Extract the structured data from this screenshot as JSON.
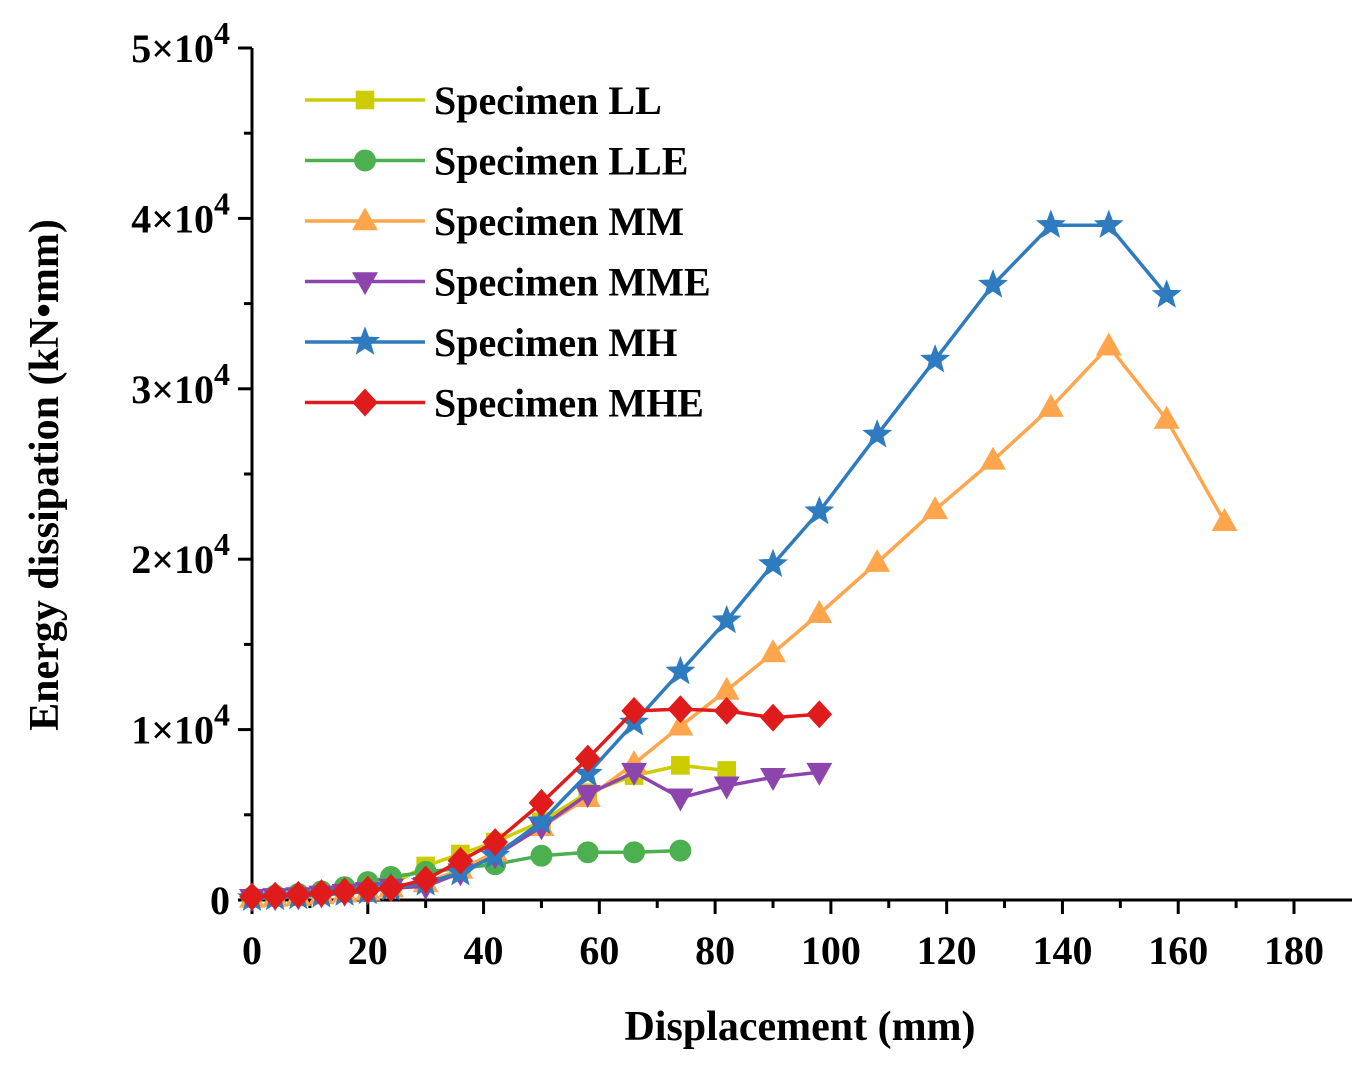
{
  "chart_data": {
    "type": "line",
    "title": "",
    "xlabel": "Displacement (mm)",
    "ylabel": "Energy dissipation (kN•mm)",
    "xlim": [
      0,
      190
    ],
    "ylim": [
      0,
      50000
    ],
    "x_ticks": [
      0,
      20,
      40,
      60,
      80,
      100,
      120,
      140,
      160,
      180
    ],
    "x_tick_labels": [
      "0",
      "20",
      "40",
      "60",
      "80",
      "100",
      "120",
      "140",
      "160",
      "180"
    ],
    "y_ticks": [
      0,
      10000,
      20000,
      30000,
      40000,
      50000
    ],
    "y_tick_labels": [
      {
        "mantissa": "0",
        "exp": ""
      },
      {
        "mantissa": "1×10",
        "exp": "4"
      },
      {
        "mantissa": "2×10",
        "exp": "4"
      },
      {
        "mantissa": "3×10",
        "exp": "4"
      },
      {
        "mantissa": "4×10",
        "exp": "4"
      },
      {
        "mantissa": "5×10",
        "exp": "4"
      }
    ],
    "grid": false,
    "legend_position": "top-left",
    "series": [
      {
        "name": "Specimen LL",
        "color": "#cccc00",
        "marker": "square",
        "x": [
          0,
          4,
          8,
          12,
          16,
          20,
          24,
          30,
          36,
          42,
          50,
          58,
          66,
          74,
          82
        ],
        "y": [
          100,
          150,
          200,
          300,
          450,
          650,
          900,
          2000,
          2700,
          3400,
          4600,
          6300,
          7300,
          7900,
          7600
        ]
      },
      {
        "name": "Specimen LLE",
        "color": "#4caf50",
        "marker": "circle",
        "x": [
          0,
          4,
          8,
          12,
          16,
          20,
          24,
          30,
          36,
          42,
          50,
          58,
          66,
          74
        ],
        "y": [
          150,
          250,
          350,
          500,
          750,
          1050,
          1350,
          1650,
          1850,
          2100,
          2600,
          2800,
          2800,
          2900
        ]
      },
      {
        "name": "Specimen MM",
        "color": "#ffa64d",
        "marker": "triangle-up",
        "x": [
          0,
          4,
          8,
          12,
          16,
          20,
          24,
          30,
          36,
          42,
          50,
          58,
          66,
          74,
          82,
          90,
          98,
          108,
          118,
          128,
          138,
          148,
          158,
          168
        ],
        "y": [
          100,
          150,
          200,
          300,
          400,
          500,
          700,
          1000,
          1800,
          2800,
          4300,
          6000,
          8000,
          10200,
          12300,
          14500,
          16800,
          19800,
          22900,
          25800,
          28900,
          32500,
          28200,
          22200
        ]
      },
      {
        "name": "Specimen MME",
        "color": "#8e44ad",
        "marker": "triangle-down",
        "x": [
          0,
          4,
          8,
          12,
          16,
          20,
          24,
          30,
          36,
          42,
          50,
          58,
          66,
          74,
          82,
          90,
          98
        ],
        "y": [
          100,
          150,
          200,
          300,
          400,
          500,
          700,
          800,
          1600,
          2600,
          4300,
          6200,
          7500,
          6000,
          6700,
          7200,
          7500
        ]
      },
      {
        "name": "Specimen MH",
        "color": "#2e7cbf",
        "marker": "star",
        "x": [
          0,
          4,
          8,
          12,
          16,
          20,
          24,
          30,
          36,
          42,
          50,
          58,
          66,
          74,
          82,
          90,
          98,
          108,
          118,
          128,
          138,
          148,
          158
        ],
        "y": [
          100,
          150,
          200,
          300,
          400,
          500,
          700,
          1000,
          1600,
          2600,
          4600,
          7400,
          10400,
          13400,
          16400,
          19700,
          22800,
          27300,
          31700,
          36100,
          39600,
          39600,
          35500
        ]
      },
      {
        "name": "Specimen MHE",
        "color": "#e01b1b",
        "marker": "diamond",
        "x": [
          0,
          4,
          8,
          12,
          16,
          20,
          24,
          30,
          36,
          42,
          50,
          58,
          66,
          74,
          82,
          90,
          98
        ],
        "y": [
          200,
          250,
          300,
          400,
          500,
          600,
          700,
          1200,
          2300,
          3400,
          5700,
          8300,
          11100,
          11200,
          11100,
          10700,
          10900
        ]
      }
    ]
  }
}
